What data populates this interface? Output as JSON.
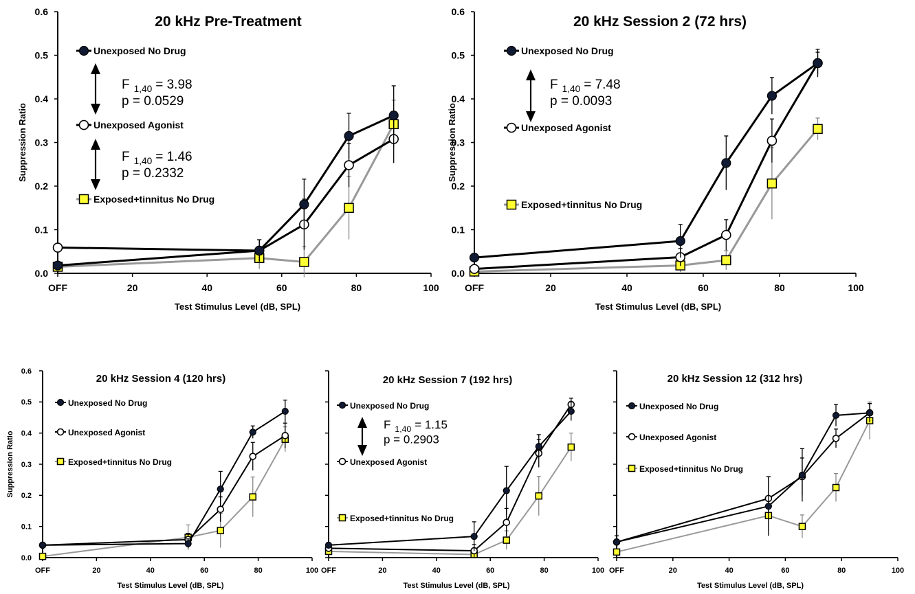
{
  "chart_data": [
    {
      "type": "line",
      "title": "20 kHz Pre-Treatment",
      "xlabel": "Test Stimulus Level (dB, SPL)",
      "ylabel": "Suppression Ratio",
      "xlim": [
        0,
        100
      ],
      "ylim": [
        0,
        0.6
      ],
      "x_ticks": [
        "OFF",
        "20",
        "40",
        "60",
        "80",
        "100"
      ],
      "y_ticks": [
        "0.0",
        "0.1",
        "0.2",
        "0.3",
        "0.4",
        "0.5",
        "0.6"
      ],
      "grid": false,
      "legend_position": "upper-left",
      "series": [
        {
          "name": "Unexposed No Drug",
          "marker": "filled-circle",
          "color": "#000000",
          "x": [
            0,
            54,
            66,
            78,
            90
          ],
          "y": [
            0.018,
            0.052,
            0.158,
            0.315,
            0.362
          ],
          "err": [
            0.005,
            0.025,
            0.058,
            0.052,
            0.068
          ]
        },
        {
          "name": "Unexposed Agonist",
          "marker": "open-circle",
          "color": "#000000",
          "x": [
            0,
            54,
            66,
            78,
            90
          ],
          "y": [
            0.059,
            0.052,
            0.112,
            0.248,
            0.308
          ],
          "err": [
            0.005,
            0.025,
            0.058,
            0.05,
            0.055
          ]
        },
        {
          "name": "Exposed+tinnitus No Drug",
          "marker": "yellow-square",
          "color": "#999999",
          "x": [
            0,
            54,
            66,
            78,
            90
          ],
          "y": [
            0.015,
            0.035,
            0.026,
            0.15,
            0.342
          ],
          "err": [
            0.005,
            0.025,
            0.035,
            0.072,
            0.055
          ]
        }
      ],
      "annotations": [
        {
          "f_label": "F",
          "f_sub": "1,40",
          "f_value": "= 3.98",
          "p_text": "p = 0.0529"
        },
        {
          "f_label": "F",
          "f_sub": "1,40",
          "f_value": "= 1.46",
          "p_text": "p = 0.2332"
        }
      ]
    },
    {
      "type": "line",
      "title": "20 kHz Session 2 (72 hrs)",
      "xlabel": "Test Stimulus Level (dB, SPL)",
      "ylabel": "Suppression Ratio",
      "xlim": [
        0,
        100
      ],
      "ylim": [
        0,
        0.6
      ],
      "x_ticks": [
        "OFF",
        "20",
        "40",
        "60",
        "80",
        "100"
      ],
      "y_ticks": [
        "0.0",
        "0.1",
        "0.2",
        "0.3",
        "0.4",
        "0.5",
        "0.6"
      ],
      "grid": false,
      "legend_position": "upper-left",
      "series": [
        {
          "name": "Unexposed No Drug",
          "marker": "filled-circle",
          "color": "#000000",
          "x": [
            0,
            54,
            66,
            78,
            90
          ],
          "y": [
            0.036,
            0.074,
            0.253,
            0.407,
            0.482
          ],
          "err": [
            0.008,
            0.038,
            0.062,
            0.042,
            0.032
          ]
        },
        {
          "name": "Unexposed Agonist",
          "marker": "open-circle",
          "color": "#000000",
          "x": [
            0,
            54,
            66,
            78,
            90
          ],
          "y": [
            0.01,
            0.037,
            0.088,
            0.304,
            0.482
          ],
          "err": [
            0.005,
            0.02,
            0.035,
            0.05,
            0.025
          ]
        },
        {
          "name": "Exposed+tinnitus No Drug",
          "marker": "yellow-square",
          "color": "#999999",
          "x": [
            0,
            54,
            66,
            78,
            90
          ],
          "y": [
            0.004,
            0.018,
            0.03,
            0.206,
            0.331
          ],
          "err": [
            0.004,
            0.015,
            0.022,
            0.082,
            0.025
          ]
        }
      ],
      "annotations": [
        {
          "f_label": "F",
          "f_sub": "1,40",
          "f_value": "= 7.48",
          "p_text": "p = 0.0093"
        }
      ]
    },
    {
      "type": "line",
      "title": "20 kHz Session 4 (120 hrs)",
      "xlabel": "Test Stimulus Level (dB, SPL)",
      "ylabel": "Suppression Ratio",
      "xlim": [
        0,
        100
      ],
      "ylim": [
        0,
        0.6
      ],
      "x_ticks": [
        "OFF",
        "20",
        "40",
        "60",
        "80",
        "100"
      ],
      "y_ticks": [
        "0.0",
        "0.1",
        "0.2",
        "0.3",
        "0.4",
        "0.5",
        "0.6"
      ],
      "grid": false,
      "legend_position": "upper-left",
      "series": [
        {
          "name": "Unexposed No Drug",
          "marker": "filled-circle",
          "color": "#000000",
          "x": [
            0,
            54,
            66,
            78,
            90
          ],
          "y": [
            0.04,
            0.045,
            0.22,
            0.403,
            0.47
          ],
          "err": [
            0.005,
            0.015,
            0.057,
            0.02,
            0.036
          ]
        },
        {
          "name": "Unexposed Agonist",
          "marker": "open-circle",
          "color": "#000000",
          "x": [
            0,
            54,
            66,
            78,
            90
          ],
          "y": [
            0.04,
            0.058,
            0.155,
            0.325,
            0.392
          ],
          "err": [
            0.005,
            0.02,
            0.04,
            0.045,
            0.04
          ]
        },
        {
          "name": "Exposed+tinnitus No Drug",
          "marker": "yellow-square",
          "color": "#999999",
          "x": [
            0,
            54,
            66,
            78,
            90
          ],
          "y": [
            0.004,
            0.065,
            0.087,
            0.195,
            0.38
          ],
          "err": [
            0.004,
            0.04,
            0.055,
            0.064,
            0.04
          ]
        }
      ],
      "annotations": []
    },
    {
      "type": "line",
      "title": "20 kHz Session 7 (192 hrs)",
      "xlabel": "Test Stimulus Level (dB, SPL)",
      "ylabel": "",
      "xlim": [
        0,
        100
      ],
      "ylim": [
        0,
        0.6
      ],
      "x_ticks": [
        "OFF",
        "20",
        "40",
        "60",
        "80",
        "100"
      ],
      "y_ticks": [],
      "grid": false,
      "legend_position": "upper-left",
      "series": [
        {
          "name": "Unexposed No Drug",
          "marker": "filled-circle",
          "color": "#000000",
          "x": [
            0,
            54,
            66,
            78,
            90
          ],
          "y": [
            0.04,
            0.068,
            0.215,
            0.357,
            0.47
          ],
          "err": [
            0.005,
            0.047,
            0.078,
            0.038,
            0.03
          ]
        },
        {
          "name": "Unexposed Agonist",
          "marker": "open-circle",
          "color": "#000000",
          "x": [
            0,
            54,
            66,
            78,
            90
          ],
          "y": [
            0.03,
            0.022,
            0.113,
            0.335,
            0.492
          ],
          "err": [
            0.005,
            0.02,
            0.045,
            0.045,
            0.02
          ]
        },
        {
          "name": "Exposed+tinnitus No Drug",
          "marker": "yellow-square",
          "color": "#999999",
          "x": [
            0,
            54,
            66,
            78,
            90
          ],
          "y": [
            0.02,
            0.01,
            0.056,
            0.198,
            0.355
          ],
          "err": [
            0.005,
            0.01,
            0.03,
            0.063,
            0.045
          ]
        }
      ],
      "annotations": [
        {
          "f_label": "F",
          "f_sub": "1,40",
          "f_value": "= 1.15",
          "p_text": "p = 0.2903"
        }
      ]
    },
    {
      "type": "line",
      "title": "20 kHz Session 12 (312 hrs)",
      "xlabel": "Test Stimulus Level (dB, SPL)",
      "ylabel": "",
      "xlim": [
        0,
        100
      ],
      "ylim": [
        0,
        0.6
      ],
      "x_ticks": [
        "OFF",
        "20",
        "40",
        "60",
        "80",
        "100"
      ],
      "y_ticks": [],
      "grid": false,
      "legend_position": "upper-left",
      "series": [
        {
          "name": "Unexposed No Drug",
          "marker": "filled-circle",
          "color": "#000000",
          "x": [
            0,
            54,
            66,
            78,
            90
          ],
          "y": [
            0.05,
            0.165,
            0.265,
            0.457,
            0.465
          ],
          "err": [
            0.02,
            0.095,
            0.085,
            0.035,
            0.03
          ]
        },
        {
          "name": "Unexposed Agonist",
          "marker": "open-circle",
          "color": "#000000",
          "x": [
            0,
            54,
            66,
            78,
            90
          ],
          "y": [
            0.05,
            0.19,
            0.26,
            0.383,
            0.465
          ],
          "err": [
            0.02,
            0.07,
            0.06,
            0.03,
            0.03
          ]
        },
        {
          "name": "Exposed+tinnitus No Drug",
          "marker": "yellow-square",
          "color": "#999999",
          "x": [
            0,
            54,
            66,
            78,
            90
          ],
          "y": [
            0.018,
            0.135,
            0.1,
            0.225,
            0.44
          ],
          "err": [
            0.005,
            0.05,
            0.037,
            0.045,
            0.06
          ]
        }
      ],
      "annotations": []
    }
  ]
}
